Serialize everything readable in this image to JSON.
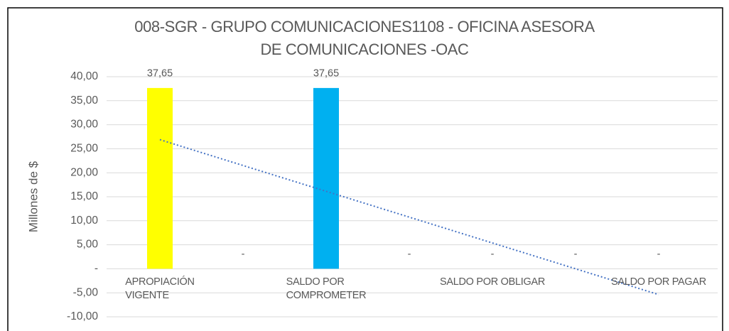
{
  "chart_data": {
    "type": "bar",
    "title": "008-SGR - GRUPO COMUNICACIONES1108 - OFICINA ASESORA\nDE COMUNICACIONES -OAC",
    "y_label": "Millones de $",
    "categories": [
      "APROPIACIÓN\nVIGENTE",
      null,
      "SALDO POR\nCOMPROMETER",
      null,
      "SALDO POR OBLIGAR",
      null,
      "SALDO POR PAGAR"
    ],
    "values": [
      37.65,
      0,
      37.65,
      0,
      0,
      0,
      0
    ],
    "value_labels": [
      "37,65",
      "-",
      "37,65",
      "-",
      "-",
      "-",
      "-"
    ],
    "colors": [
      "#ffff00",
      null,
      "#00b0f0",
      null,
      null,
      null,
      null
    ],
    "ylim": [
      -10,
      40
    ],
    "yticks": [
      {
        "value": -10,
        "label": "-10,00"
      },
      {
        "value": -5,
        "label": "-5,00"
      },
      {
        "value": 0,
        "label": "-"
      },
      {
        "value": 5,
        "label": "5,00"
      },
      {
        "value": 10,
        "label": "10,00"
      },
      {
        "value": 15,
        "label": "15,00"
      },
      {
        "value": 20,
        "label": "20,00"
      },
      {
        "value": 25,
        "label": "25,00"
      },
      {
        "value": 30,
        "label": "30,00"
      },
      {
        "value": 35,
        "label": "35,00"
      },
      {
        "value": 40,
        "label": "40,00"
      }
    ],
    "grid": true,
    "trendline": "linear",
    "trendline_color": "#4472c4"
  }
}
